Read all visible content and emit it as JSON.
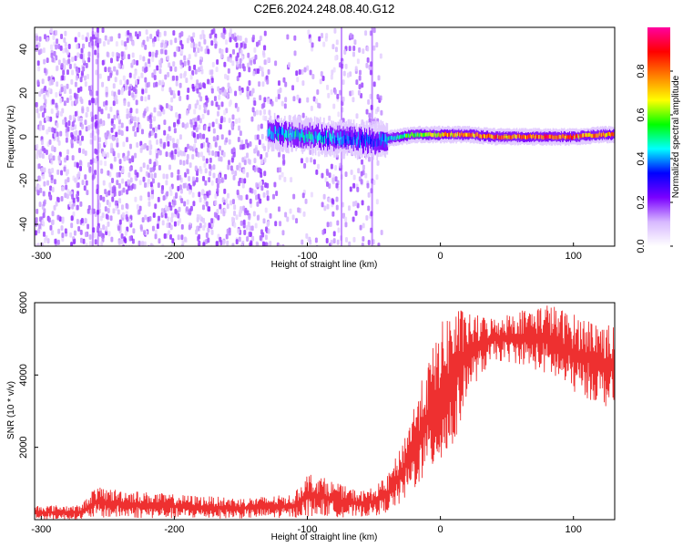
{
  "title": "C2E6.2024.248.08.40.G12",
  "colors": {
    "snr_line": "#ee3030",
    "frame": "#000000",
    "dots": "#6a2bd9"
  },
  "chart_data": [
    {
      "type": "heatmap",
      "title": "C2E6.2024.248.08.40.G12",
      "xlabel": "Height of straight line (km)",
      "ylabel": "Frequency (Hz)",
      "xlim": [
        -305,
        131
      ],
      "ylim": [
        -50,
        50
      ],
      "xticks": [
        -300,
        -200,
        -100,
        0,
        100
      ],
      "yticks": [
        -40,
        -20,
        0,
        20,
        40
      ],
      "colorbar": {
        "label": "Normalized spectral amplitude",
        "range": [
          0,
          1
        ],
        "ticks": [
          "0.0",
          "0.2",
          "0.4",
          "0.6",
          "0.8"
        ],
        "colormap": [
          "#ffffff",
          "#d7b8ff",
          "#7a00ff",
          "#0000ff",
          "#00ffff",
          "#00ff00",
          "#ffff00",
          "#ff8000",
          "#ff0000",
          "#ff00a0"
        ]
      },
      "features": {
        "noise_band_x": [
          -305,
          -45
        ],
        "signal_trace": [
          {
            "x": -130,
            "y": 2,
            "amp": 0.45
          },
          {
            "x": -110,
            "y": 1,
            "amp": 0.5
          },
          {
            "x": -90,
            "y": 0,
            "amp": 0.45
          },
          {
            "x": -70,
            "y": -1,
            "amp": 0.4
          },
          {
            "x": -50,
            "y": -2,
            "amp": 0.35
          },
          {
            "x": -40,
            "y": -1,
            "amp": 0.45
          },
          {
            "x": -20,
            "y": 1,
            "amp": 0.6
          },
          {
            "x": 0,
            "y": 1,
            "amp": 0.75
          },
          {
            "x": 20,
            "y": 1,
            "amp": 0.85
          },
          {
            "x": 40,
            "y": 0,
            "amp": 0.85
          },
          {
            "x": 60,
            "y": 0,
            "amp": 0.85
          },
          {
            "x": 80,
            "y": 0,
            "amp": 0.9
          },
          {
            "x": 100,
            "y": 0,
            "amp": 0.85
          },
          {
            "x": 120,
            "y": 1,
            "amp": 0.8
          },
          {
            "x": 131,
            "y": 1,
            "amp": 0.8
          }
        ]
      }
    },
    {
      "type": "line",
      "xlabel": "Height of straight line (km)",
      "ylabel": "SNR (10 * v/v)",
      "xlim": [
        -305,
        131
      ],
      "ylim": [
        0,
        6000
      ],
      "xticks": [
        -300,
        -200,
        -100,
        0,
        100
      ],
      "yticks": [
        2000,
        4000,
        6000
      ],
      "series": [
        {
          "envelope": {
            "x": [
              -305,
              -270,
              -260,
              -200,
              -150,
              -110,
              -100,
              -90,
              -70,
              -60,
              -50,
              -40,
              -30,
              -20,
              -10,
              0,
              10,
              20,
              40,
              60,
              80,
              100,
              120,
              131
            ],
            "min": [
              0,
              0,
              50,
              30,
              30,
              50,
              80,
              100,
              50,
              80,
              100,
              200,
              400,
              800,
              1200,
              1500,
              1800,
              3500,
              4400,
              4300,
              4000,
              3500,
              3200,
              3000
            ],
            "max": [
              400,
              400,
              900,
              700,
              600,
              700,
              1300,
              1200,
              900,
              800,
              900,
              1200,
              2000,
              3200,
              4300,
              5400,
              6000,
              5700,
              5600,
              5800,
              6000,
              5700,
              5500,
              5400
            ]
          }
        }
      ]
    }
  ]
}
